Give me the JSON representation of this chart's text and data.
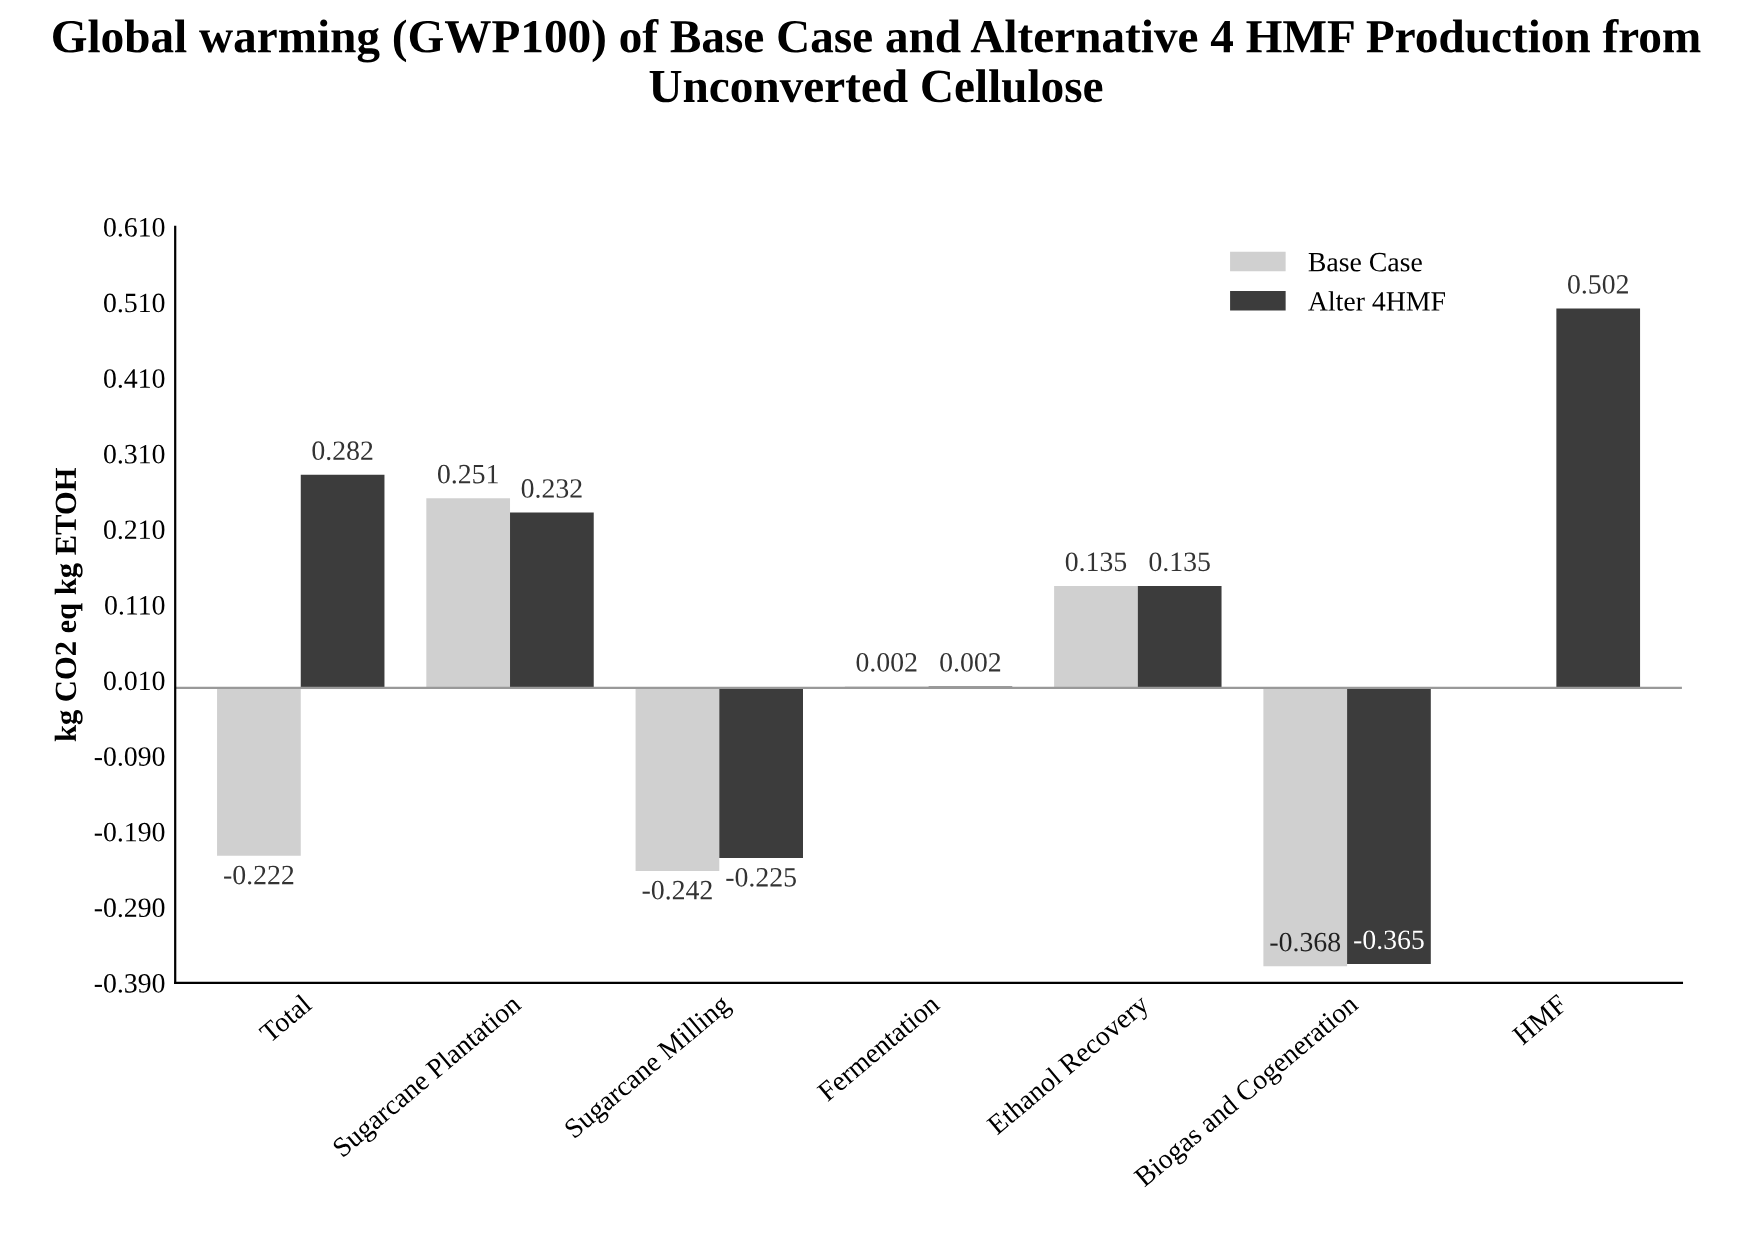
{
  "chart_data": {
    "type": "bar",
    "title": "Global warming (GWP100) of Base Case and Alternative 4 HMF Production from Unconverted Cellulose",
    "ylabel": "kg CO2 eq kg ETOH",
    "categories": [
      "Total",
      "Sugarcane Plantation",
      "Sugarcane Milling",
      "Fermentation",
      "Ethanol Recovery",
      "Biogas and Cogeneration",
      "HMF"
    ],
    "series": [
      {
        "name": "Base Case",
        "color": "#d0d0d0",
        "values": [
          -0.222,
          0.251,
          -0.242,
          0.002,
          0.135,
          -0.368,
          null
        ]
      },
      {
        "name": "Alter 4HMF",
        "color": "#3c3c3c",
        "values": [
          0.282,
          0.232,
          -0.225,
          0.002,
          0.135,
          -0.365,
          0.502
        ]
      }
    ],
    "data_labels": true,
    "ylim": [
      -0.39,
      0.61
    ],
    "yticks": [
      {
        "value": 0.61,
        "label": "0.610"
      },
      {
        "value": 0.51,
        "label": "0.510"
      },
      {
        "value": 0.41,
        "label": "0.410"
      },
      {
        "value": 0.31,
        "label": "0.310"
      },
      {
        "value": 0.21,
        "label": "0.210"
      },
      {
        "value": 0.11,
        "label": "0.110"
      },
      {
        "value": 0.01,
        "label": "0.010"
      },
      {
        "value": -0.09,
        "label": "-0.090"
      },
      {
        "value": -0.19,
        "label": "-0.190"
      },
      {
        "value": -0.29,
        "label": "-0.290"
      },
      {
        "value": -0.39,
        "label": "-0.390"
      }
    ],
    "grid": false,
    "legend": "top right"
  }
}
